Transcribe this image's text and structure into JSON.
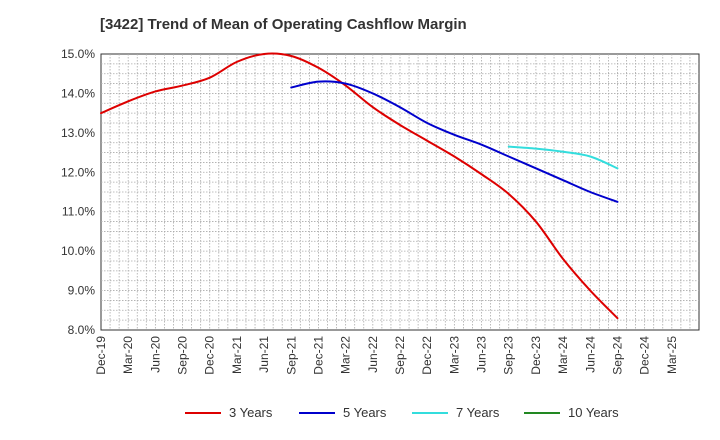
{
  "chart_data": {
    "type": "line",
    "title": "[3422]  Trend of Mean of Operating Cashflow Margin",
    "xlabel": "",
    "ylabel": "",
    "ylim": [
      8.0,
      15.0
    ],
    "y_ticks": [
      "8.0%",
      "9.0%",
      "10.0%",
      "11.0%",
      "12.0%",
      "13.0%",
      "14.0%",
      "15.0%"
    ],
    "x_ticks": [
      "Dec-19",
      "Mar-20",
      "Jun-20",
      "Sep-20",
      "Dec-20",
      "Mar-21",
      "Jun-21",
      "Sep-21",
      "Dec-21",
      "Mar-22",
      "Jun-22",
      "Sep-22",
      "Dec-22",
      "Mar-23",
      "Jun-23",
      "Sep-23",
      "Dec-23",
      "Mar-24",
      "Jun-24",
      "Sep-24",
      "Dec-24",
      "Mar-25"
    ],
    "grid": true,
    "legend_position": "bottom",
    "series": [
      {
        "name": "3 Years",
        "color": "#dd0000",
        "x": [
          "Dec-19",
          "Mar-20",
          "Jun-20",
          "Sep-20",
          "Dec-20",
          "Mar-21",
          "Jun-21",
          "Sep-21",
          "Dec-21",
          "Mar-22",
          "Jun-22",
          "Sep-22",
          "Dec-22",
          "Mar-23",
          "Jun-23",
          "Sep-23",
          "Dec-23",
          "Mar-24",
          "Jun-24",
          "Sep-24"
        ],
        "values": [
          13.5,
          13.8,
          14.05,
          14.2,
          14.4,
          14.8,
          15.0,
          14.95,
          14.65,
          14.2,
          13.65,
          13.2,
          12.8,
          12.4,
          11.95,
          11.45,
          10.75,
          9.8,
          9.0,
          8.3
        ]
      },
      {
        "name": "5 Years",
        "color": "#0000cc",
        "x": [
          "Sep-21",
          "Dec-21",
          "Mar-22",
          "Jun-22",
          "Sep-22",
          "Dec-22",
          "Mar-23",
          "Jun-23",
          "Sep-23",
          "Dec-23",
          "Mar-24",
          "Jun-24",
          "Sep-24"
        ],
        "values": [
          14.15,
          14.3,
          14.25,
          14.0,
          13.65,
          13.25,
          12.95,
          12.7,
          12.4,
          12.1,
          11.8,
          11.5,
          11.25
        ]
      },
      {
        "name": "7 Years",
        "color": "#33dddd",
        "x": [
          "Sep-23",
          "Dec-23",
          "Mar-24",
          "Jun-24",
          "Sep-24"
        ],
        "values": [
          12.65,
          12.6,
          12.52,
          12.4,
          12.1
        ]
      },
      {
        "name": "10 Years",
        "color": "#228822",
        "x": [],
        "values": []
      }
    ]
  }
}
